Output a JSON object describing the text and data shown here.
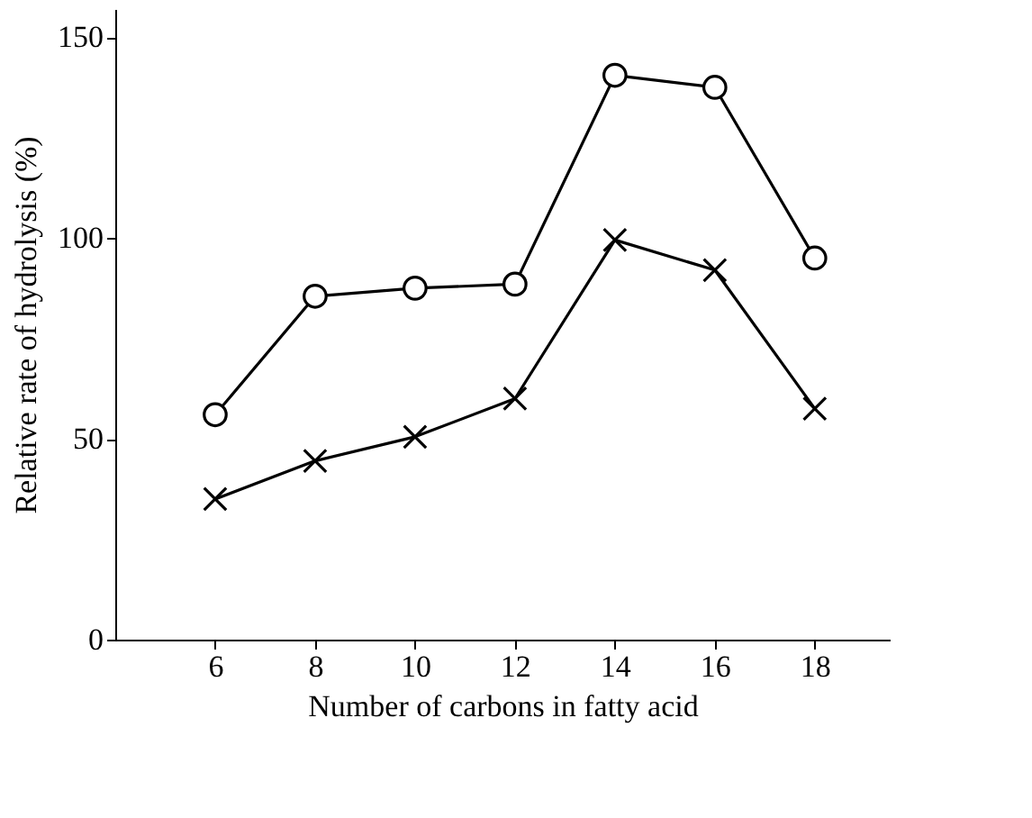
{
  "chart_data": {
    "type": "line",
    "xlabel": "Number of carbons in fatty acid",
    "ylabel": "Relative rate of hydrolysis (%)",
    "x": [
      6,
      8,
      10,
      12,
      14,
      16,
      18
    ],
    "series": [
      {
        "color": "#000000",
        "marker": "circle",
        "values": [
          56,
          85.5,
          87.5,
          88.5,
          140.5,
          137.5,
          95
        ]
      },
      {
        "color": "#000000",
        "marker": "cross",
        "values": [
          35,
          44.5,
          50.5,
          60,
          99.5,
          92,
          57.5
        ]
      }
    ],
    "xlim": [
      4,
      19.5
    ],
    "xticks": [
      6,
      8,
      10,
      12,
      14,
      16,
      18
    ],
    "ylim": [
      0,
      157
    ],
    "yticks": [
      0,
      50,
      100,
      150
    ],
    "grid": false,
    "line_style": "solid"
  }
}
